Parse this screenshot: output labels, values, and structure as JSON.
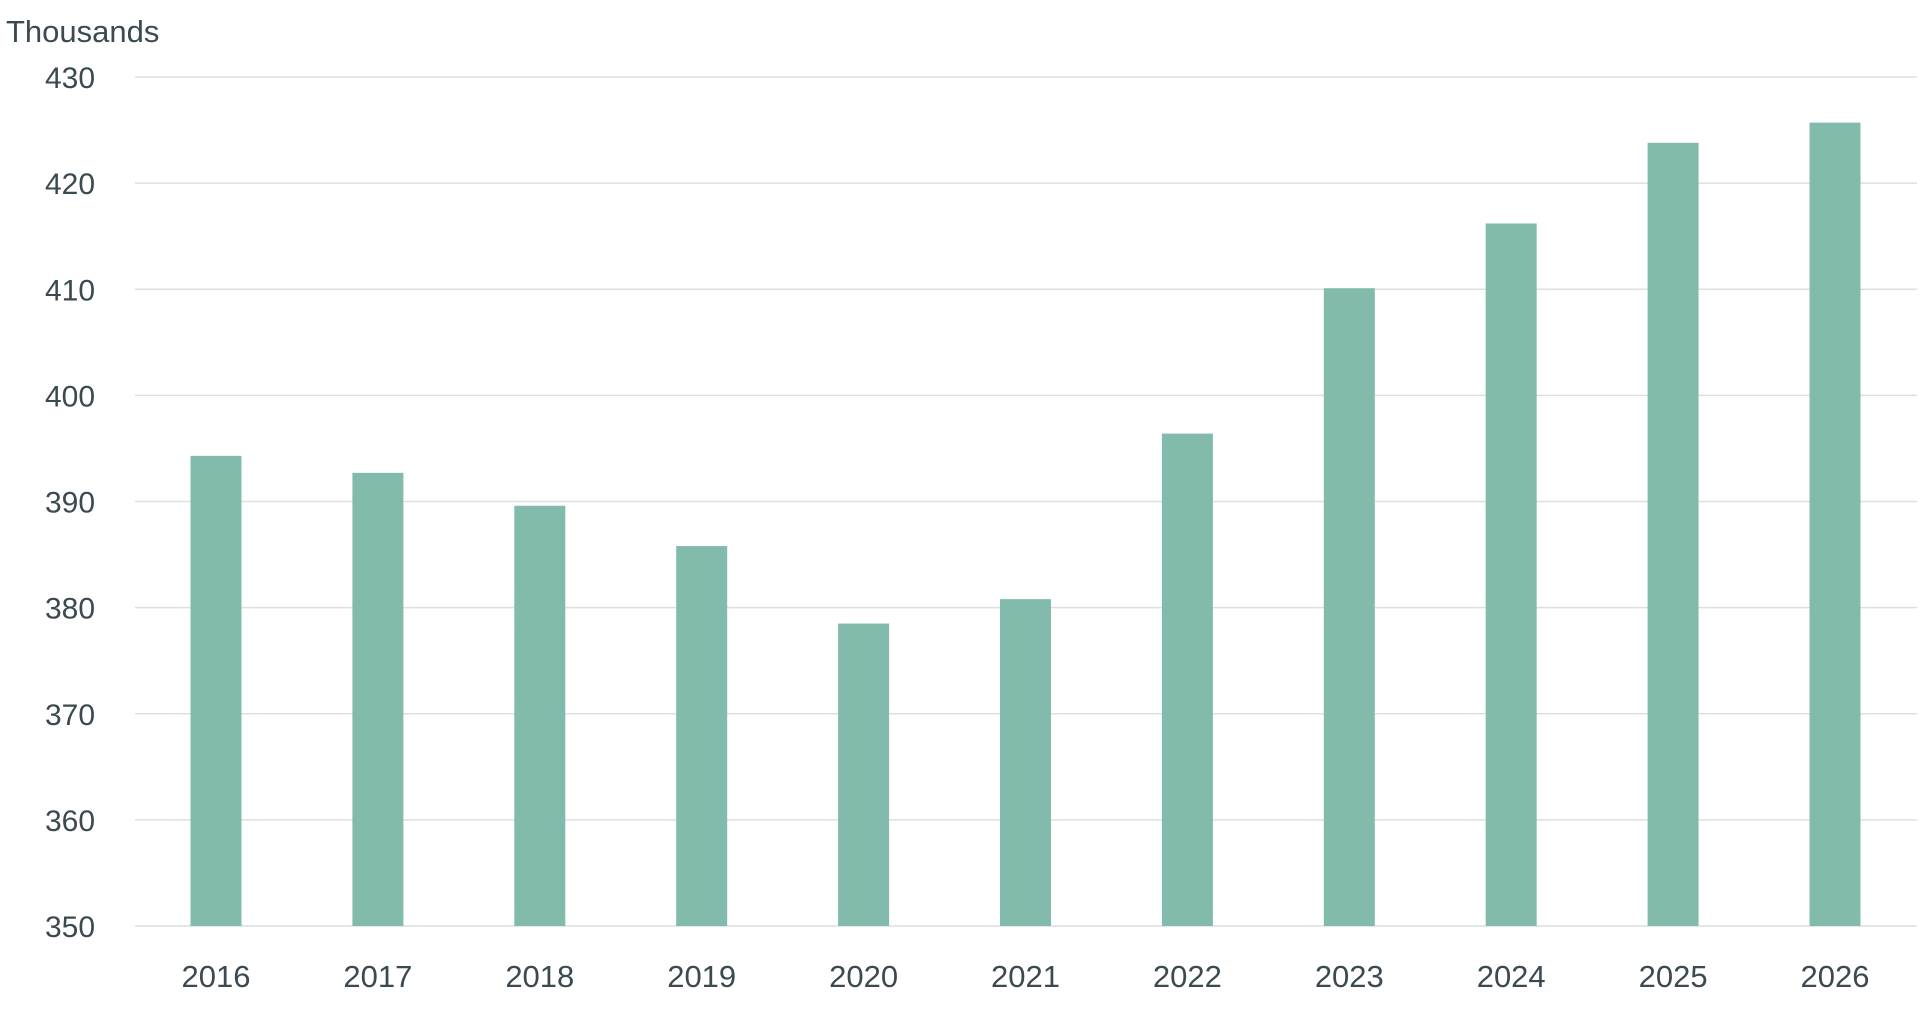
{
  "chart_data": {
    "type": "bar",
    "unit_label": "Thousands",
    "categories": [
      "2016",
      "2017",
      "2018",
      "2019",
      "2020",
      "2021",
      "2022",
      "2023",
      "2024",
      "2025",
      "2026"
    ],
    "series": [
      {
        "values": [
          394.3,
          392.7,
          389.6,
          385.8,
          378.5,
          380.8,
          396.4,
          410.1,
          416.2,
          423.8,
          425.7
        ],
        "color": "#82bbac"
      }
    ],
    "ylim": [
      350,
      430
    ],
    "yticks": [
      350,
      360,
      370,
      380,
      390,
      400,
      410,
      420,
      430
    ],
    "ytick_labels": [
      "350",
      "360",
      "370",
      "380",
      "390",
      "400",
      "410",
      "420",
      "430"
    ],
    "grid": true,
    "legend": "none",
    "colors": {
      "bar": "#82bbac",
      "grid": "#dcdfe0",
      "text": "#3a4a50"
    }
  }
}
